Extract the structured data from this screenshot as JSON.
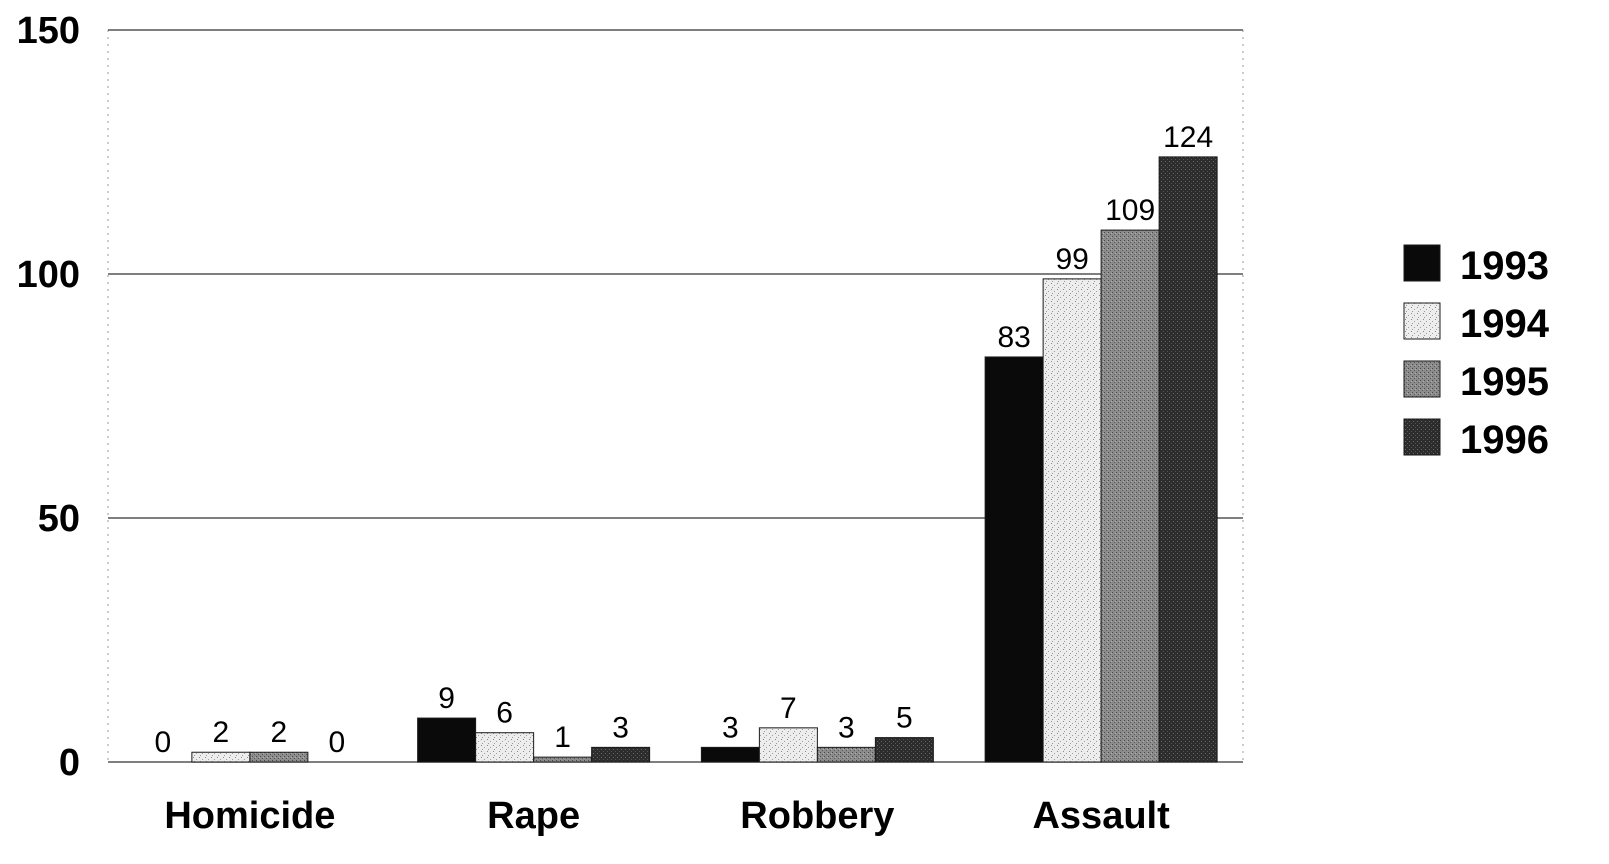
{
  "chart_data": {
    "type": "bar",
    "title": "",
    "xlabel": "",
    "ylabel": "",
    "ylim": [
      0,
      150
    ],
    "yticks": [
      0,
      50,
      100,
      150
    ],
    "grid": true,
    "legend_position": "right",
    "categories": [
      "Homicide",
      "Rape",
      "Robbery",
      "Assault"
    ],
    "series": [
      {
        "name": "1993",
        "values": [
          0,
          9,
          3,
          83
        ],
        "color": "#0a0a0a",
        "pattern": "solid"
      },
      {
        "name": "1994",
        "values": [
          2,
          6,
          7,
          99
        ],
        "color": "#e6e6e6",
        "pattern": "light-speckle"
      },
      {
        "name": "1995",
        "values": [
          2,
          1,
          3,
          109
        ],
        "color": "#7a7a7a",
        "pattern": "medium-speckle"
      },
      {
        "name": "1996",
        "values": [
          0,
          3,
          5,
          124
        ],
        "color": "#2a2a2a",
        "pattern": "dark-speckle"
      }
    ],
    "data_labels": true
  }
}
